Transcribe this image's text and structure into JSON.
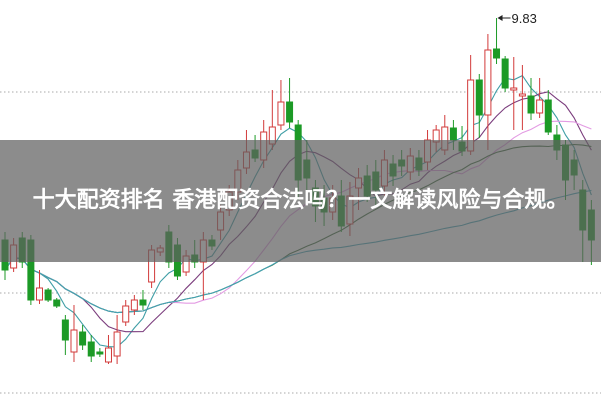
{
  "banner": {
    "title": "十大配资排名 香港配资合法吗？一文解读风险与合规。"
  },
  "chart_data": {
    "type": "candlestick",
    "title": "",
    "grid": "dotted horizontal",
    "colors": {
      "up": "#d23a3a",
      "down": "#1c9a26",
      "ma5": "#3f9ea6",
      "ma10": "#7b3d7d",
      "ma20": "#e39be3",
      "ma30": "#3a6a3a",
      "ma60": "#43a4b6"
    },
    "moving_averages": [
      5,
      10,
      20,
      30,
      60
    ],
    "peak_annotation": "9.83",
    "ylim": [
      6.0,
      10.01
    ],
    "candles_ohlc": [
      [
        7.61,
        7.31,
        7.69,
        7.21
      ],
      [
        7.33,
        7.56,
        7.63,
        7.29
      ],
      [
        7.63,
        7.39,
        7.69,
        7.33
      ],
      [
        7.61,
        7.01,
        7.66,
        6.96
      ],
      [
        7.01,
        7.13,
        7.31,
        6.97
      ],
      [
        7.11,
        7.01,
        7.13,
        6.99
      ],
      [
        7.01,
        6.95,
        7.03,
        6.93
      ],
      [
        6.81,
        6.61,
        6.86,
        6.46
      ],
      [
        6.49,
        6.71,
        6.96,
        6.39
      ],
      [
        6.69,
        6.56,
        6.76,
        6.51
      ],
      [
        6.59,
        6.45,
        6.66,
        6.39
      ],
      [
        6.49,
        6.47,
        6.53,
        6.44
      ],
      [
        6.39,
        6.53,
        6.66,
        6.37
      ],
      [
        6.45,
        6.69,
        6.86,
        6.37
      ],
      [
        6.79,
        6.95,
        7.01,
        6.75
      ],
      [
        6.91,
        7.01,
        7.06,
        6.86
      ],
      [
        7.01,
        6.96,
        7.11,
        6.91
      ],
      [
        7.19,
        7.51,
        7.56,
        7.13
      ],
      [
        7.49,
        7.53,
        7.56,
        7.45
      ],
      [
        7.69,
        7.39,
        7.76,
        7.33
      ],
      [
        7.56,
        7.25,
        7.63,
        7.21
      ],
      [
        7.29,
        7.45,
        7.51,
        7.25
      ],
      [
        7.46,
        7.39,
        7.61,
        7.33
      ],
      [
        7.39,
        7.61,
        7.69,
        7.01
      ],
      [
        7.61,
        7.55,
        7.66,
        7.51
      ],
      [
        7.71,
        7.89,
        7.96,
        7.61
      ],
      [
        7.91,
        8.09,
        8.16,
        7.85
      ],
      [
        8.09,
        8.31,
        8.41,
        8.01
      ],
      [
        8.33,
        8.49,
        8.71,
        8.27
      ],
      [
        8.51,
        8.43,
        8.66,
        8.39
      ],
      [
        8.41,
        8.69,
        8.81,
        8.33
      ],
      [
        8.57,
        8.74,
        9.11,
        8.51
      ],
      [
        8.76,
        8.99,
        9.21,
        8.71
      ],
      [
        8.99,
        8.79,
        9.23,
        8.73
      ],
      [
        8.76,
        8.21,
        8.81,
        8.01
      ],
      [
        8.41,
        8.23,
        8.61,
        8.06
      ],
      [
        8.13,
        7.95,
        8.21,
        7.79
      ],
      [
        8.03,
        7.89,
        8.16,
        7.75
      ],
      [
        7.89,
        8.03,
        8.16,
        7.81
      ],
      [
        8.05,
        7.75,
        8.21,
        7.69
      ],
      [
        7.77,
        8.05,
        8.19,
        7.65
      ],
      [
        8.13,
        8.23,
        8.33,
        7.91
      ],
      [
        8.25,
        8.05,
        8.36,
        7.99
      ],
      [
        8.29,
        8.11,
        8.41,
        7.95
      ],
      [
        8.15,
        8.41,
        8.51,
        8.05
      ],
      [
        8.37,
        8.25,
        8.46,
        8.15
      ],
      [
        8.41,
        8.35,
        8.51,
        8.25
      ],
      [
        8.29,
        8.45,
        8.53,
        8.21
      ],
      [
        8.43,
        8.31,
        8.51,
        8.25
      ],
      [
        8.39,
        8.61,
        8.71,
        8.31
      ],
      [
        8.59,
        8.71,
        8.76,
        8.49
      ],
      [
        8.51,
        8.74,
        8.86,
        8.46
      ],
      [
        8.73,
        8.61,
        8.81,
        8.51
      ],
      [
        8.59,
        8.5,
        8.75,
        8.45
      ],
      [
        8.5,
        9.21,
        9.46,
        8.46
      ],
      [
        9.21,
        8.86,
        9.27,
        8.63
      ],
      [
        8.86,
        9.51,
        9.67,
        8.51
      ],
      [
        9.52,
        9.43,
        9.83,
        9.37
      ],
      [
        9.42,
        9.13,
        9.45,
        9.09
      ],
      [
        9.11,
        9.13,
        9.44,
        8.71
      ],
      [
        9.05,
        9.07,
        9.36,
        8.71
      ],
      [
        9.05,
        8.88,
        9.23,
        8.81
      ],
      [
        8.88,
        9.01,
        9.23,
        8.83
      ],
      [
        9.01,
        8.69,
        9.11,
        8.66
      ],
      [
        8.66,
        8.51,
        8.76,
        8.41
      ],
      [
        8.56,
        8.21,
        8.61,
        8.01
      ],
      [
        8.41,
        8.26,
        8.51,
        8.11
      ],
      [
        8.11,
        7.71,
        8.21,
        7.39
      ],
      [
        7.91,
        7.61,
        8.01,
        7.36
      ]
    ]
  }
}
